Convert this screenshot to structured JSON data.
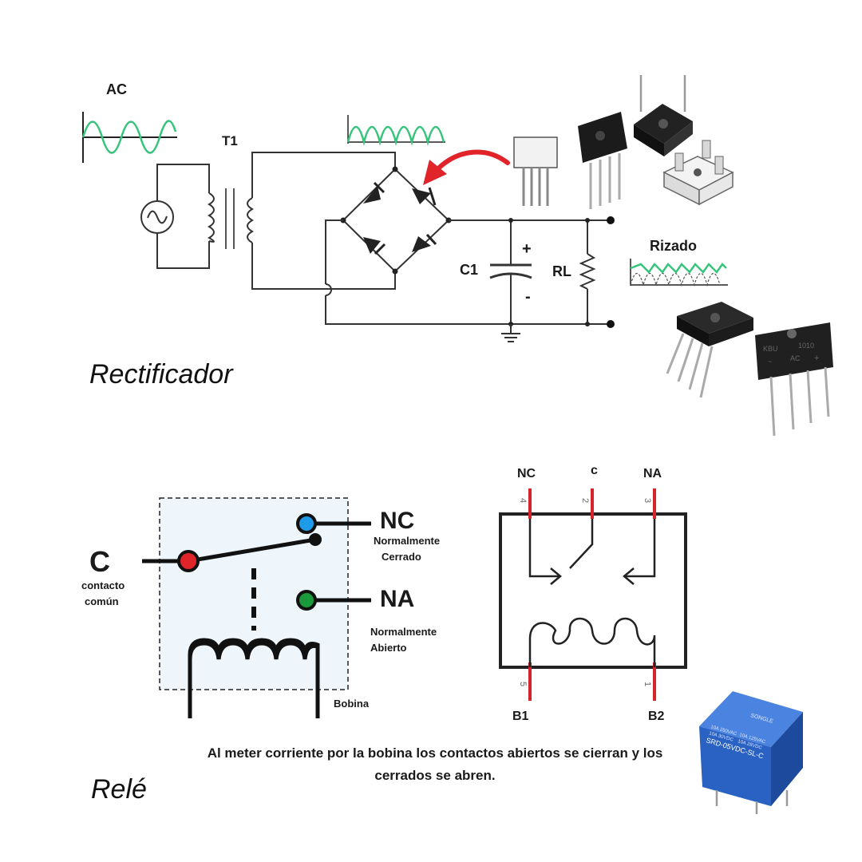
{
  "rectifier": {
    "section_title": "Rectificador",
    "ac_label": "AC",
    "transformer_label": "T1",
    "capacitor_label": "C1",
    "cap_plus": "+",
    "cap_minus": "-",
    "load_label": "RL",
    "ripple_label": "Rizado",
    "bridge_chip_text": [
      "KBU",
      "1010",
      "AC",
      "~",
      "+"
    ],
    "colors": {
      "wave": "#35c47a",
      "arrow": "#e0242a",
      "line": "#2a2a2a"
    }
  },
  "relay": {
    "section_title": "Relé",
    "common_big": "C",
    "common_desc": [
      "contacto",
      "común"
    ],
    "nc_big": "NC",
    "nc_desc": [
      "Normalmente",
      "Cerrado"
    ],
    "na_big": "NA",
    "na_desc": [
      "Normalmente",
      "Abierto"
    ],
    "coil_label": "Bobina",
    "pinout": {
      "top_labels": [
        "NC",
        "c",
        "NA"
      ],
      "top_pin_numbers": [
        "4",
        "2",
        "3"
      ],
      "bottom_labels": [
        "B1",
        "B2"
      ],
      "bottom_pin_numbers": [
        "5",
        "1"
      ]
    },
    "caption": [
      "Al meter corriente por la bobina los contactos abiertos se cierran y los",
      "cerrados se abren."
    ],
    "product_text": [
      "SONGLE",
      "10A 250VAC",
      "10A 125VAC",
      "10A 30VDC",
      "10A 28VDC",
      "SRD-05VDC-SL-C"
    ],
    "colors": {
      "common_dot": "#e0242a",
      "nc_dot": "#1e9be8",
      "na_dot": "#1a9a3a",
      "pin_red": "#d9232a",
      "relay_body": "#2a62c4",
      "dashed_box_fill": "#eef5fb"
    }
  }
}
